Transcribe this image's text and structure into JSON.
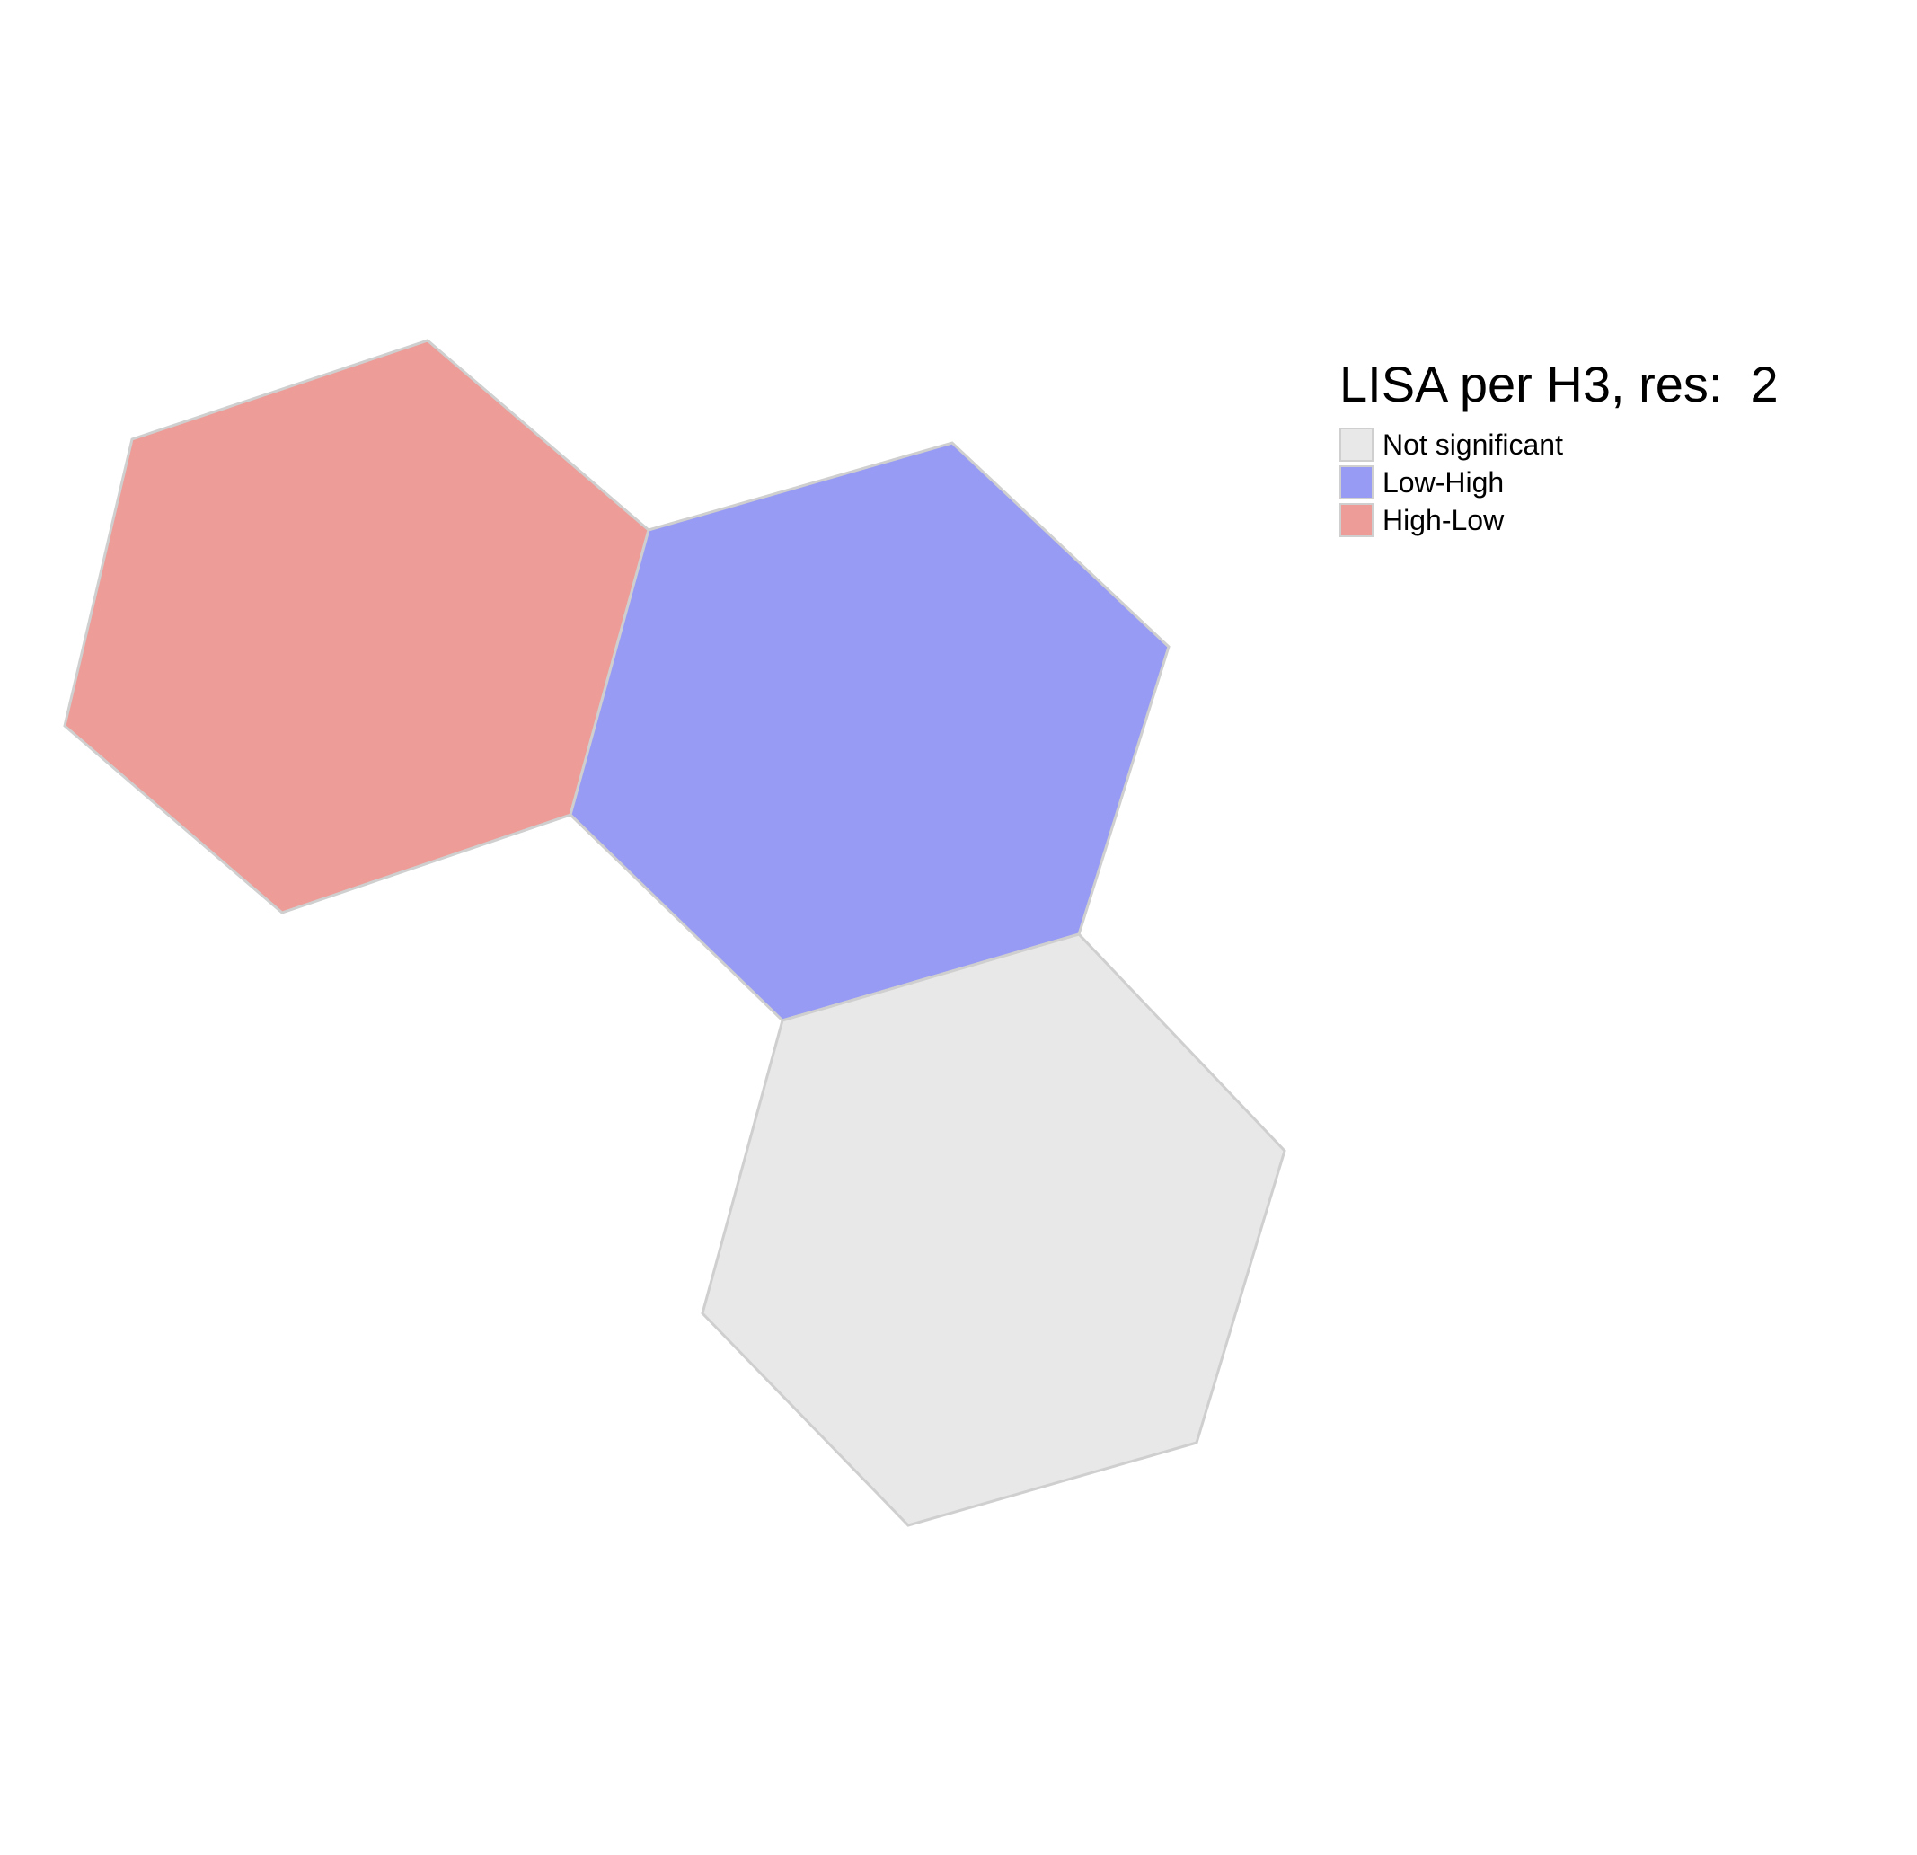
{
  "map": {
    "title": "LISA per H3, res:  2",
    "legend": [
      {
        "label": "Not significant",
        "color": "#e8e8e8"
      },
      {
        "label": "Low-High",
        "color": "#979bf4"
      },
      {
        "label": "High-Low",
        "color": "#ed9c97"
      }
    ],
    "cells": [
      {
        "category": "High-Low"
      },
      {
        "category": "Low-High"
      },
      {
        "category": "Not significant"
      }
    ],
    "border_color": "#cfcfcf"
  }
}
